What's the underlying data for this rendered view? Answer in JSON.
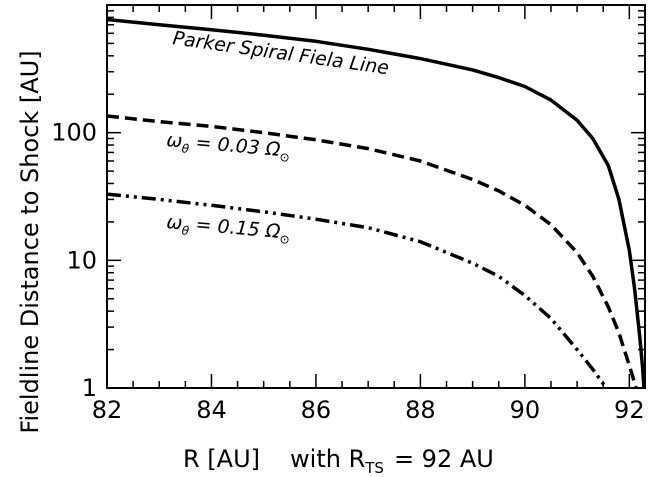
{
  "chart_data": {
    "type": "line",
    "xlabel_prefix": "R [AU]",
    "xlabel_with": "with R",
    "xlabel_sub": "TS",
    "xlabel_suffix": "= 92 AU",
    "ylabel": "Fieldline Distance to Shock [AU]",
    "xlim": [
      82,
      92.3
    ],
    "ylim": [
      1,
      1000
    ],
    "yscale": "log",
    "x_ticks": [
      "82",
      "84",
      "86",
      "88",
      "90",
      "92"
    ],
    "y_ticks": [
      "1",
      "10",
      "100"
    ],
    "grid": false,
    "series": [
      {
        "style": "solid",
        "annotation": "Parker Spiral Fiela Line",
        "x": [
          82.0,
          83.0,
          84.0,
          85.0,
          86.0,
          87.0,
          88.0,
          89.0,
          89.5,
          90.0,
          90.5,
          91.0,
          91.3,
          91.6,
          91.8,
          92.0,
          92.1,
          92.2,
          92.25,
          92.28
        ],
        "y": [
          770,
          700,
          640,
          580,
          520,
          450,
          380,
          310,
          270,
          230,
          180,
          125,
          90,
          55,
          30,
          12,
          6,
          2.5,
          1.5,
          1.0
        ]
      },
      {
        "style": "dashed",
        "annotation_omega": "ω",
        "annotation_sub": "θ",
        "annotation_eq": "= 0.03 Ω",
        "x": [
          82.0,
          83.0,
          84.0,
          85.0,
          86.0,
          87.0,
          88.0,
          89.0,
          89.5,
          90.0,
          90.5,
          91.0,
          91.3,
          91.6,
          91.8,
          92.0,
          92.1,
          92.2
        ],
        "y": [
          135,
          122,
          112,
          100,
          88,
          75,
          60,
          43,
          35,
          27,
          19,
          11.5,
          7.5,
          4.3,
          2.7,
          1.5,
          1.1,
          0.8
        ]
      },
      {
        "style": "dash-dot-dot",
        "annotation_omega": "ω",
        "annotation_sub": "θ",
        "annotation_eq": "= 0.15 Ω",
        "x": [
          82.0,
          83.0,
          84.0,
          85.0,
          86.0,
          87.0,
          88.0,
          89.0,
          89.5,
          90.0,
          90.5,
          91.0,
          91.3,
          91.6,
          91.8
        ],
        "y": [
          33,
          30,
          27,
          24,
          21,
          18,
          14,
          9.5,
          7.5,
          5.3,
          3.5,
          2.0,
          1.4,
          0.95,
          0.7
        ]
      }
    ]
  }
}
